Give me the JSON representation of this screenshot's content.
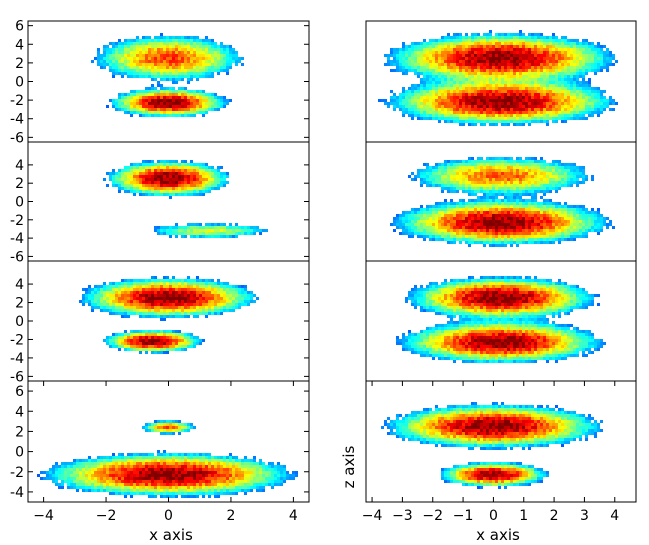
{
  "figure": {
    "left_xlabel": "x axis",
    "right_xlabel": "x axis",
    "right_ylabel": "z axis"
  },
  "chart_data": [
    {
      "type": "heatmap",
      "panel": "left-1",
      "xlim": [
        -4.5,
        4.5
      ],
      "ylim": [
        -6.5,
        6.5
      ],
      "xticks": [],
      "yticks": [
        "6",
        "4",
        "2",
        "0",
        "-2",
        "-4",
        "-6"
      ],
      "colormap": "jet",
      "clusters": [
        {
          "x": 0,
          "y": 2.5,
          "sx": 1.25,
          "sy": 1.3,
          "peak": 0.65
        },
        {
          "x": 0,
          "y": -2.3,
          "sx": 0.9,
          "sy": 0.75,
          "peak": 1.0
        }
      ]
    },
    {
      "type": "heatmap",
      "panel": "left-2",
      "xlim": [
        -4.5,
        4.5
      ],
      "ylim": [
        -6.5,
        6.5
      ],
      "xticks": [],
      "yticks": [
        "4",
        "2",
        "0",
        "-2",
        "-4",
        "-6"
      ],
      "colormap": "jet",
      "clusters": [
        {
          "x": 0,
          "y": 2.5,
          "sx": 0.95,
          "sy": 0.95,
          "peak": 1.0
        },
        {
          "x": 1.3,
          "y": -3.2,
          "sx": 1.2,
          "sy": 0.5,
          "peak": 0.35
        }
      ]
    },
    {
      "type": "heatmap",
      "panel": "left-3",
      "xlim": [
        -4.5,
        4.5
      ],
      "ylim": [
        -6.5,
        6.5
      ],
      "xticks": [],
      "yticks": [
        "4",
        "2",
        "0",
        "-2",
        "-4",
        "-6"
      ],
      "colormap": "jet",
      "clusters": [
        {
          "x": 0,
          "y": 2.5,
          "sx": 1.35,
          "sy": 1.05,
          "peak": 1.0
        },
        {
          "x": -0.5,
          "y": -2.2,
          "sx": 0.75,
          "sy": 0.6,
          "peak": 1.0
        }
      ]
    },
    {
      "type": "heatmap",
      "panel": "left-4",
      "xlim": [
        -4.5,
        4.5
      ],
      "ylim": [
        -5,
        7
      ],
      "xticks": [
        "-4",
        "-2",
        "0",
        "2",
        "4"
      ],
      "yticks": [
        "6",
        "4",
        "2",
        "0",
        "-2",
        "-4"
      ],
      "colormap": "jet",
      "clusters": [
        {
          "x": 0,
          "y": 2.4,
          "sx": 0.45,
          "sy": 0.35,
          "peak": 0.6
        },
        {
          "x": 0,
          "y": -2.3,
          "sx": 1.9,
          "sy": 1.05,
          "peak": 1.0
        }
      ]
    },
    {
      "type": "heatmap",
      "panel": "right-1",
      "xlim": [
        -4.2,
        4.2
      ],
      "ylim": [
        -6.5,
        6.5
      ],
      "xticks": [],
      "yticks": [],
      "colormap": "jet",
      "clusters": [
        {
          "x": 0,
          "y": 2.5,
          "sx": 1.7,
          "sy": 1.3,
          "peak": 1.0
        },
        {
          "x": 0,
          "y": -2.2,
          "sx": 1.7,
          "sy": 1.2,
          "peak": 1.0
        }
      ]
    },
    {
      "type": "heatmap",
      "panel": "right-2",
      "xlim": [
        -4.2,
        4.2
      ],
      "ylim": [
        -6.5,
        6.5
      ],
      "xticks": [],
      "yticks": [],
      "colormap": "jet",
      "clusters": [
        {
          "x": 0,
          "y": 2.8,
          "sx": 1.5,
          "sy": 1.1,
          "peak": 0.6
        },
        {
          "x": 0,
          "y": -2.3,
          "sx": 1.6,
          "sy": 1.2,
          "peak": 1.0
        }
      ]
    },
    {
      "type": "heatmap",
      "panel": "right-3",
      "xlim": [
        -4.2,
        4.2
      ],
      "ylim": [
        -6.5,
        6.5
      ],
      "xticks": [],
      "yticks": [],
      "colormap": "jet",
      "clusters": [
        {
          "x": 0,
          "y": 2.5,
          "sx": 1.4,
          "sy": 1.1,
          "peak": 1.0
        },
        {
          "x": 0,
          "y": -2.3,
          "sx": 1.5,
          "sy": 1.1,
          "peak": 1.0
        }
      ]
    },
    {
      "type": "heatmap",
      "panel": "right-4",
      "xlim": [
        -4.2,
        4.7
      ],
      "ylim": [
        -5,
        7
      ],
      "xticks": [
        "-4",
        "-3",
        "-2",
        "-1",
        "0",
        "1",
        "2",
        "3",
        "4"
      ],
      "yticks": [],
      "colormap": "jet",
      "clusters": [
        {
          "x": 0,
          "y": 2.5,
          "sx": 1.7,
          "sy": 1.05,
          "peak": 1.0
        },
        {
          "x": 0,
          "y": -2.3,
          "sx": 0.85,
          "sy": 0.6,
          "peak": 1.0
        }
      ]
    }
  ]
}
